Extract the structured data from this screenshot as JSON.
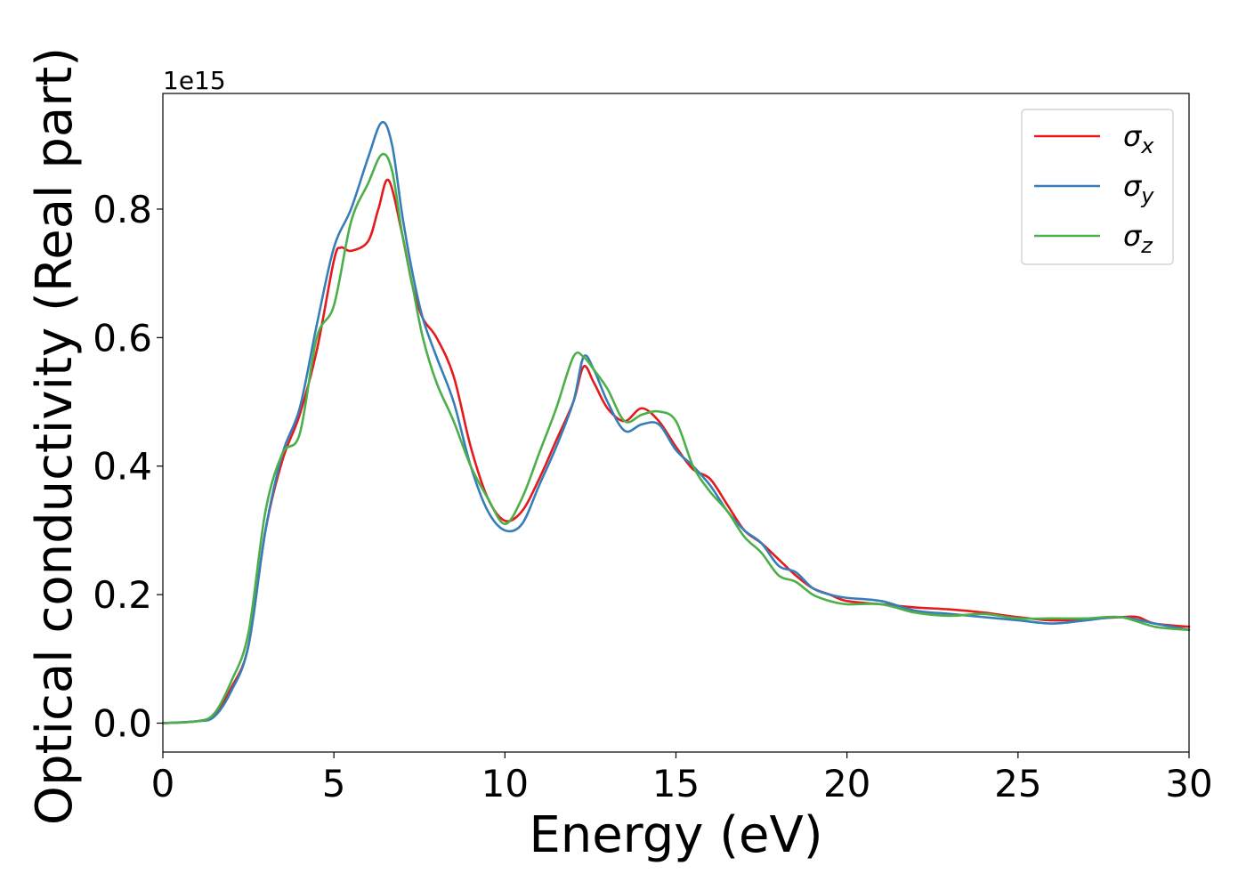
{
  "chart_data": {
    "type": "line",
    "title": "",
    "xlabel": "Energy (eV)",
    "ylabel": "Optical conductivity (Real part)",
    "y_offset_label": "1e15",
    "xlim": [
      0,
      30
    ],
    "ylim": [
      -0.045,
      0.98
    ],
    "x_ticks": [
      0,
      5,
      10,
      15,
      20,
      25,
      30
    ],
    "x_tick_labels": [
      "0",
      "5",
      "10",
      "15",
      "20",
      "25",
      "30"
    ],
    "y_ticks": [
      0.0,
      0.2,
      0.4,
      0.6,
      0.8
    ],
    "y_tick_labels": [
      "0.0",
      "0.2",
      "0.4",
      "0.6",
      "0.8"
    ],
    "grid": false,
    "legend_position": "top-right",
    "series": [
      {
        "name": "σx",
        "legend_base": "σ",
        "legend_sub": "x",
        "color": "#e41a1c",
        "points": [
          [
            0,
            0.0
          ],
          [
            1,
            0.003
          ],
          [
            1.5,
            0.012
          ],
          [
            2,
            0.055
          ],
          [
            2.5,
            0.12
          ],
          [
            3,
            0.3
          ],
          [
            3.5,
            0.41
          ],
          [
            4,
            0.48
          ],
          [
            4.5,
            0.58
          ],
          [
            5,
            0.72
          ],
          [
            5.2,
            0.74
          ],
          [
            5.5,
            0.735
          ],
          [
            6,
            0.75
          ],
          [
            6.3,
            0.8
          ],
          [
            6.6,
            0.845
          ],
          [
            7,
            0.76
          ],
          [
            7.3,
            0.68
          ],
          [
            7.6,
            0.63
          ],
          [
            8,
            0.6
          ],
          [
            8.5,
            0.54
          ],
          [
            9,
            0.43
          ],
          [
            9.5,
            0.35
          ],
          [
            10,
            0.315
          ],
          [
            10.5,
            0.33
          ],
          [
            11,
            0.38
          ],
          [
            11.5,
            0.44
          ],
          [
            12,
            0.5
          ],
          [
            12.3,
            0.555
          ],
          [
            12.6,
            0.53
          ],
          [
            13,
            0.49
          ],
          [
            13.5,
            0.47
          ],
          [
            14,
            0.49
          ],
          [
            14.5,
            0.47
          ],
          [
            15,
            0.43
          ],
          [
            15.5,
            0.395
          ],
          [
            16,
            0.38
          ],
          [
            16.5,
            0.34
          ],
          [
            17,
            0.3
          ],
          [
            17.5,
            0.28
          ],
          [
            18,
            0.255
          ],
          [
            18.5,
            0.23
          ],
          [
            19,
            0.21
          ],
          [
            19.5,
            0.2
          ],
          [
            20,
            0.19
          ],
          [
            21,
            0.185
          ],
          [
            22,
            0.18
          ],
          [
            23,
            0.177
          ],
          [
            24,
            0.172
          ],
          [
            25,
            0.165
          ],
          [
            26,
            0.16
          ],
          [
            27,
            0.162
          ],
          [
            28,
            0.165
          ],
          [
            28.5,
            0.165
          ],
          [
            29,
            0.155
          ],
          [
            30,
            0.15
          ]
        ]
      },
      {
        "name": "σy",
        "legend_base": "σ",
        "legend_sub": "y",
        "color": "#377eb8",
        "points": [
          [
            0,
            0.0
          ],
          [
            1,
            0.003
          ],
          [
            1.5,
            0.01
          ],
          [
            2,
            0.05
          ],
          [
            2.5,
            0.12
          ],
          [
            3,
            0.3
          ],
          [
            3.5,
            0.42
          ],
          [
            4,
            0.49
          ],
          [
            4.5,
            0.62
          ],
          [
            5,
            0.74
          ],
          [
            5.5,
            0.8
          ],
          [
            6,
            0.88
          ],
          [
            6.4,
            0.935
          ],
          [
            6.7,
            0.9
          ],
          [
            7,
            0.79
          ],
          [
            7.3,
            0.7
          ],
          [
            7.6,
            0.63
          ],
          [
            8,
            0.57
          ],
          [
            8.5,
            0.5
          ],
          [
            9,
            0.4
          ],
          [
            9.5,
            0.33
          ],
          [
            10,
            0.3
          ],
          [
            10.5,
            0.31
          ],
          [
            11,
            0.37
          ],
          [
            11.5,
            0.43
          ],
          [
            12,
            0.5
          ],
          [
            12.3,
            0.57
          ],
          [
            12.6,
            0.55
          ],
          [
            13,
            0.5
          ],
          [
            13.5,
            0.455
          ],
          [
            14,
            0.465
          ],
          [
            14.5,
            0.465
          ],
          [
            15,
            0.425
          ],
          [
            15.5,
            0.4
          ],
          [
            16,
            0.37
          ],
          [
            16.5,
            0.33
          ],
          [
            17,
            0.3
          ],
          [
            17.5,
            0.28
          ],
          [
            18,
            0.245
          ],
          [
            18.5,
            0.235
          ],
          [
            19,
            0.21
          ],
          [
            19.5,
            0.2
          ],
          [
            20,
            0.195
          ],
          [
            21,
            0.19
          ],
          [
            22,
            0.175
          ],
          [
            23,
            0.17
          ],
          [
            24,
            0.165
          ],
          [
            25,
            0.16
          ],
          [
            26,
            0.155
          ],
          [
            27,
            0.16
          ],
          [
            28,
            0.165
          ],
          [
            29,
            0.155
          ],
          [
            30,
            0.145
          ]
        ]
      },
      {
        "name": "σz",
        "legend_base": "σ",
        "legend_sub": "z",
        "color": "#4daf4a",
        "points": [
          [
            0,
            0.0
          ],
          [
            1,
            0.003
          ],
          [
            1.5,
            0.015
          ],
          [
            2,
            0.065
          ],
          [
            2.5,
            0.14
          ],
          [
            3,
            0.33
          ],
          [
            3.5,
            0.42
          ],
          [
            4,
            0.45
          ],
          [
            4.5,
            0.6
          ],
          [
            5,
            0.65
          ],
          [
            5.5,
            0.78
          ],
          [
            6,
            0.84
          ],
          [
            6.4,
            0.885
          ],
          [
            6.7,
            0.86
          ],
          [
            7,
            0.76
          ],
          [
            7.3,
            0.68
          ],
          [
            7.6,
            0.6
          ],
          [
            8,
            0.53
          ],
          [
            8.5,
            0.47
          ],
          [
            9,
            0.4
          ],
          [
            9.5,
            0.35
          ],
          [
            10,
            0.31
          ],
          [
            10.5,
            0.35
          ],
          [
            11,
            0.42
          ],
          [
            11.5,
            0.49
          ],
          [
            12,
            0.57
          ],
          [
            12.3,
            0.57
          ],
          [
            12.6,
            0.55
          ],
          [
            13,
            0.52
          ],
          [
            13.5,
            0.47
          ],
          [
            14,
            0.48
          ],
          [
            14.5,
            0.485
          ],
          [
            15,
            0.47
          ],
          [
            15.5,
            0.4
          ],
          [
            16,
            0.36
          ],
          [
            16.5,
            0.33
          ],
          [
            17,
            0.29
          ],
          [
            17.5,
            0.265
          ],
          [
            18,
            0.23
          ],
          [
            18.5,
            0.22
          ],
          [
            19,
            0.2
          ],
          [
            19.5,
            0.19
          ],
          [
            20,
            0.185
          ],
          [
            21,
            0.185
          ],
          [
            22,
            0.172
          ],
          [
            23,
            0.167
          ],
          [
            24,
            0.17
          ],
          [
            25,
            0.163
          ],
          [
            26,
            0.163
          ],
          [
            27,
            0.163
          ],
          [
            28,
            0.165
          ],
          [
            29,
            0.15
          ],
          [
            30,
            0.145
          ]
        ]
      }
    ]
  }
}
